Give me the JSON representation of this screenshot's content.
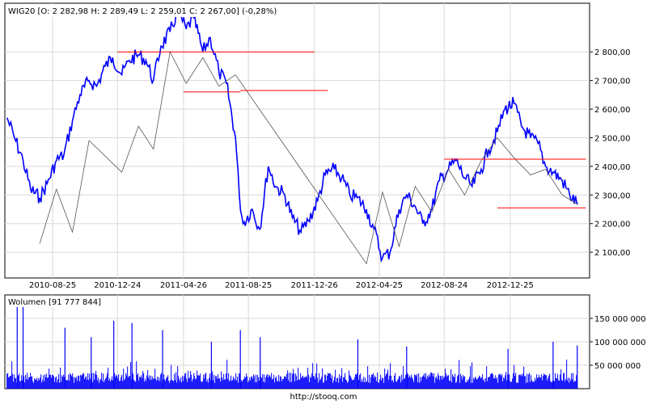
{
  "chart_data": [
    {
      "type": "line",
      "title": "WIG20 [O: 2 282,98  H: 2 289,49  L: 2 259,01  C: 2 267,00] (-0,28%)",
      "x_tick_labels": [
        "2010-08-25",
        "2010-12-24",
        "2011-04-26",
        "2011-08-25",
        "2011-12-26",
        "2012-04-25",
        "2012-08-24",
        "2012-12-25"
      ],
      "y_tick_labels": [
        "2 100,00",
        "2 200,00",
        "2 300,00",
        "2 400,00",
        "2 500,00",
        "2 600,00",
        "2 700,00",
        "2 800,00"
      ],
      "y_ticks": [
        2100,
        2200,
        2300,
        2400,
        2500,
        2600,
        2700,
        2800
      ],
      "ylim": [
        2010,
        2970
      ],
      "grid": true,
      "series": [
        {
          "color": "#0000ff",
          "x": [
            "2010-06-01",
            "2010-06-15",
            "2010-07-01",
            "2010-07-15",
            "2010-08-01",
            "2010-08-15",
            "2010-09-01",
            "2010-09-15",
            "2010-10-01",
            "2010-10-15",
            "2010-11-01",
            "2010-11-15",
            "2010-12-01",
            "2010-12-15",
            "2011-01-01",
            "2011-01-15",
            "2011-02-01",
            "2011-02-15",
            "2011-03-01",
            "2011-03-15",
            "2011-04-01",
            "2011-04-15",
            "2011-05-01",
            "2011-05-15",
            "2011-06-01",
            "2011-06-15",
            "2011-07-01",
            "2011-07-15",
            "2011-08-01",
            "2011-08-08",
            "2011-08-15",
            "2011-09-01",
            "2011-09-15",
            "2011-10-01",
            "2011-10-15",
            "2011-11-01",
            "2011-11-15",
            "2011-12-01",
            "2011-12-15",
            "2012-01-01",
            "2012-01-15",
            "2012-02-01",
            "2012-02-15",
            "2012-03-01",
            "2012-03-15",
            "2012-04-01",
            "2012-04-15",
            "2012-05-01",
            "2012-05-15",
            "2012-06-01",
            "2012-06-15",
            "2012-07-01",
            "2012-07-15",
            "2012-08-01",
            "2012-08-15",
            "2012-09-01",
            "2012-09-15",
            "2012-10-01",
            "2012-10-15",
            "2012-11-01",
            "2012-11-15",
            "2012-12-01",
            "2012-12-15",
            "2013-01-01",
            "2013-01-15",
            "2013-02-01",
            "2013-02-15",
            "2013-03-01",
            "2013-03-15",
            "2013-04-01",
            "2013-04-15",
            "2013-04-30"
          ],
          "values": [
            2570,
            2500,
            2420,
            2320,
            2290,
            2340,
            2420,
            2440,
            2560,
            2650,
            2700,
            2680,
            2750,
            2780,
            2720,
            2770,
            2790,
            2770,
            2700,
            2820,
            2870,
            2940,
            2880,
            2920,
            2800,
            2850,
            2730,
            2690,
            2500,
            2300,
            2200,
            2250,
            2180,
            2400,
            2330,
            2300,
            2220,
            2170,
            2210,
            2280,
            2370,
            2390,
            2360,
            2300,
            2290,
            2250,
            2180,
            2080,
            2100,
            2250,
            2300,
            2260,
            2200,
            2250,
            2350,
            2390,
            2420,
            2360,
            2330,
            2390,
            2460,
            2520,
            2600,
            2620,
            2540,
            2500,
            2480,
            2400,
            2380,
            2350,
            2300,
            2267
          ]
        },
        {
          "color": "#555555",
          "x": [
            "2010-08-01",
            "2010-09-01",
            "2010-10-01",
            "2010-11-01",
            "2011-01-01",
            "2011-02-01",
            "2011-03-01",
            "2011-04-01",
            "2011-05-01",
            "2011-06-01",
            "2011-07-01",
            "2011-08-01",
            "2012-04-01",
            "2012-05-01",
            "2012-06-01",
            "2012-07-01",
            "2012-08-01",
            "2012-09-01",
            "2012-10-01",
            "2012-11-01",
            "2012-12-01",
            "2013-01-01",
            "2013-02-01",
            "2013-03-01",
            "2013-04-01",
            "2013-04-30"
          ],
          "values": [
            2130,
            2320,
            2170,
            2490,
            2380,
            2540,
            2460,
            2800,
            2690,
            2780,
            2680,
            2720,
            2060,
            2310,
            2120,
            2330,
            2240,
            2390,
            2300,
            2420,
            2500,
            2430,
            2370,
            2390,
            2300,
            2267
          ]
        }
      ],
      "reference_lines": [
        {
          "y": 2800,
          "x_start": "2010-12-24",
          "x_end": "2011-12-26",
          "color": "#ff0000"
        },
        {
          "y": 2660,
          "x_start": "2011-04-26",
          "x_end": "2011-08-10",
          "color": "#ff0000"
        },
        {
          "y": 2665,
          "x_start": "2011-08-10",
          "x_end": "2012-01-20",
          "color": "#ff0000"
        },
        {
          "y": 2425,
          "x_start": "2012-08-24",
          "x_end": "2013-05-15",
          "color": "#ff0000"
        },
        {
          "y": 2255,
          "x_start": "2012-12-01",
          "x_end": "2013-05-15",
          "color": "#ff0000"
        }
      ]
    },
    {
      "type": "bar",
      "title": "Wolumen [91 777 844]",
      "y_tick_labels": [
        "50 000 000",
        "100 000 000",
        "150 000 000"
      ],
      "y_ticks": [
        50000000,
        100000000,
        150000000
      ],
      "ylim": [
        0,
        200000000
      ],
      "grid": true,
      "color": "#0000ff",
      "x_range": [
        "2010-06-01",
        "2013-04-30"
      ],
      "spikes": [
        {
          "x": "2010-06-20",
          "value": 185000000
        },
        {
          "x": "2010-07-01",
          "value": 175000000
        },
        {
          "x": "2010-09-17",
          "value": 130000000
        },
        {
          "x": "2010-11-05",
          "value": 110000000
        },
        {
          "x": "2010-12-17",
          "value": 145000000
        },
        {
          "x": "2011-01-20",
          "value": 140000000
        },
        {
          "x": "2011-03-18",
          "value": 125000000
        },
        {
          "x": "2011-06-17",
          "value": 100000000
        },
        {
          "x": "2011-08-10",
          "value": 125000000
        },
        {
          "x": "2011-09-16",
          "value": 110000000
        },
        {
          "x": "2012-03-16",
          "value": 105000000
        },
        {
          "x": "2012-06-15",
          "value": 90000000
        },
        {
          "x": "2012-12-21",
          "value": 85000000
        },
        {
          "x": "2013-03-15",
          "value": 100000000
        },
        {
          "x": "2013-04-29",
          "value": 92000000
        }
      ]
    }
  ],
  "footer": "http://stooq.com"
}
